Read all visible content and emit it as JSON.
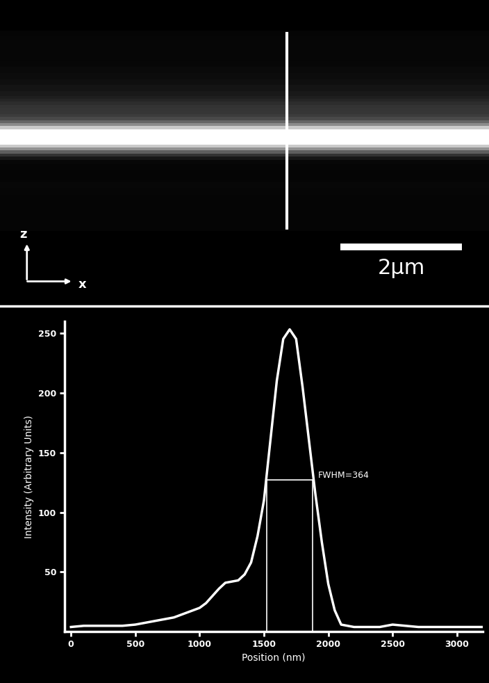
{
  "chart_data": {
    "type": "line",
    "x": [
      0,
      100,
      200,
      300,
      400,
      500,
      600,
      700,
      800,
      900,
      1000,
      1050,
      1100,
      1150,
      1200,
      1250,
      1300,
      1350,
      1400,
      1450,
      1500,
      1550,
      1600,
      1650,
      1700,
      1750,
      1800,
      1850,
      1900,
      1950,
      2000,
      2050,
      2100,
      2200,
      2300,
      2400,
      2500,
      2600,
      2700,
      2800,
      2900,
      3000,
      3100,
      3200
    ],
    "values": [
      4,
      5,
      5,
      5,
      5,
      6,
      8,
      10,
      12,
      16,
      20,
      24,
      30,
      36,
      41,
      42,
      43,
      48,
      58,
      80,
      110,
      160,
      210,
      245,
      253,
      245,
      205,
      160,
      115,
      75,
      40,
      18,
      6,
      4,
      4,
      4,
      6,
      5,
      4,
      4,
      4,
      4,
      4,
      4
    ],
    "color": "#ffffff",
    "xlabel": "Position (nm)",
    "ylabel": "Intensity (Arbitrary Units)",
    "xlim": [
      -50,
      3200
    ],
    "ylim": [
      0,
      260
    ],
    "xticks": [
      0,
      500,
      1000,
      1500,
      2000,
      2500,
      3000
    ],
    "yticks": [
      50,
      100,
      150,
      200,
      250
    ],
    "annotations": [
      {
        "label": "FWHM=364",
        "x_left": 1520,
        "x_right": 1880,
        "y": 127
      }
    ]
  },
  "image_panel": {
    "axis_labels": {
      "vertical": "z",
      "horizontal": "x"
    },
    "scale_bar": {
      "label": "2μm",
      "length": 2000
    }
  }
}
